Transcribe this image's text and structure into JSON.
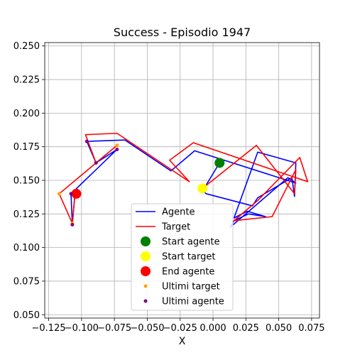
{
  "chart_data": {
    "type": "line",
    "title": "Success - Episodio 1947",
    "xlabel": "X",
    "ylabel": "",
    "xlim": [
      -0.128,
      0.081
    ],
    "ylim": [
      0.0475,
      0.2525
    ],
    "grid": true,
    "x_ticks": [
      -0.125,
      -0.1,
      -0.075,
      -0.05,
      -0.025,
      0.0,
      0.025,
      0.05,
      0.075
    ],
    "x_tick_labels": [
      "−0.125",
      "−0.100",
      "−0.075",
      "−0.050",
      "−0.025",
      "0.000",
      "0.025",
      "0.050",
      "0.075"
    ],
    "y_ticks": [
      0.05,
      0.075,
      0.1,
      0.125,
      0.15,
      0.175,
      0.2,
      0.225,
      0.25
    ],
    "y_tick_labels": [
      "0.050",
      "0.075",
      "0.100",
      "0.125",
      "0.150",
      "0.175",
      "0.200",
      "0.225",
      "0.250"
    ],
    "legend_position": "lower center",
    "colors": {
      "agent": "#0000ff",
      "target": "#ff0000",
      "start_agent": "#008000",
      "start_target": "#ffff00",
      "end_agent": "#ff0000",
      "last_target": "#ffa500",
      "last_agent": "#800080",
      "grid": "#b0b0b0"
    },
    "series": [
      {
        "name": "Agente",
        "kind": "line",
        "color": "#0000ff",
        "x": [
          0.005,
          -0.008,
          -0.005,
          0.03,
          0.034,
          0.06,
          0.062,
          0.063,
          0.034,
          0.016,
          0.026,
          0.04,
          0.027,
          0.016,
          0.013,
          0.057,
          0.063,
          -0.014,
          -0.032,
          -0.067,
          -0.096,
          -0.089,
          -0.073,
          -0.108,
          -0.107,
          -0.105
        ],
        "y": [
          0.163,
          0.142,
          0.14,
          0.131,
          0.137,
          0.152,
          0.138,
          0.163,
          0.171,
          0.122,
          0.127,
          0.123,
          0.125,
          0.12,
          0.115,
          0.152,
          0.148,
          0.172,
          0.157,
          0.18,
          0.179,
          0.163,
          0.173,
          0.14,
          0.117,
          0.14
        ]
      },
      {
        "name": "Target",
        "kind": "line",
        "color": "#ff0000",
        "x": [
          -0.008,
          0.033,
          0.062,
          0.063,
          0.045,
          0.016,
          0.034,
          0.066,
          0.072,
          -0.015,
          -0.033,
          -0.018,
          -0.073,
          -0.097,
          -0.089,
          -0.073,
          -0.117,
          -0.107,
          -0.105
        ],
        "y": [
          0.144,
          0.176,
          0.14,
          0.158,
          0.123,
          0.12,
          0.135,
          0.167,
          0.149,
          0.178,
          0.165,
          0.149,
          0.185,
          0.184,
          0.163,
          0.176,
          0.14,
          0.118,
          0.14
        ]
      },
      {
        "name": "Start agente",
        "kind": "marker",
        "color": "#008000",
        "size": 7,
        "x": [
          0.005
        ],
        "y": [
          0.163
        ]
      },
      {
        "name": "Start target",
        "kind": "marker",
        "color": "#ffff00",
        "size": 7,
        "x": [
          -0.008
        ],
        "y": [
          0.144
        ]
      },
      {
        "name": "End agente",
        "kind": "marker",
        "color": "#ff0000",
        "size": 7,
        "x": [
          -0.104
        ],
        "y": [
          0.14
        ]
      },
      {
        "name": "Ultimi target",
        "kind": "scatter",
        "color": "#ffa500",
        "size": 2.5,
        "x": [
          -0.117,
          -0.107,
          -0.089,
          -0.073
        ],
        "y": [
          0.14,
          0.118,
          0.163,
          0.176
        ]
      },
      {
        "name": "Ultimi agente",
        "kind": "scatter",
        "color": "#800080",
        "size": 2.5,
        "x": [
          -0.108,
          -0.107,
          -0.096,
          -0.089,
          -0.073
        ],
        "y": [
          0.14,
          0.117,
          0.179,
          0.163,
          0.173
        ]
      }
    ]
  }
}
